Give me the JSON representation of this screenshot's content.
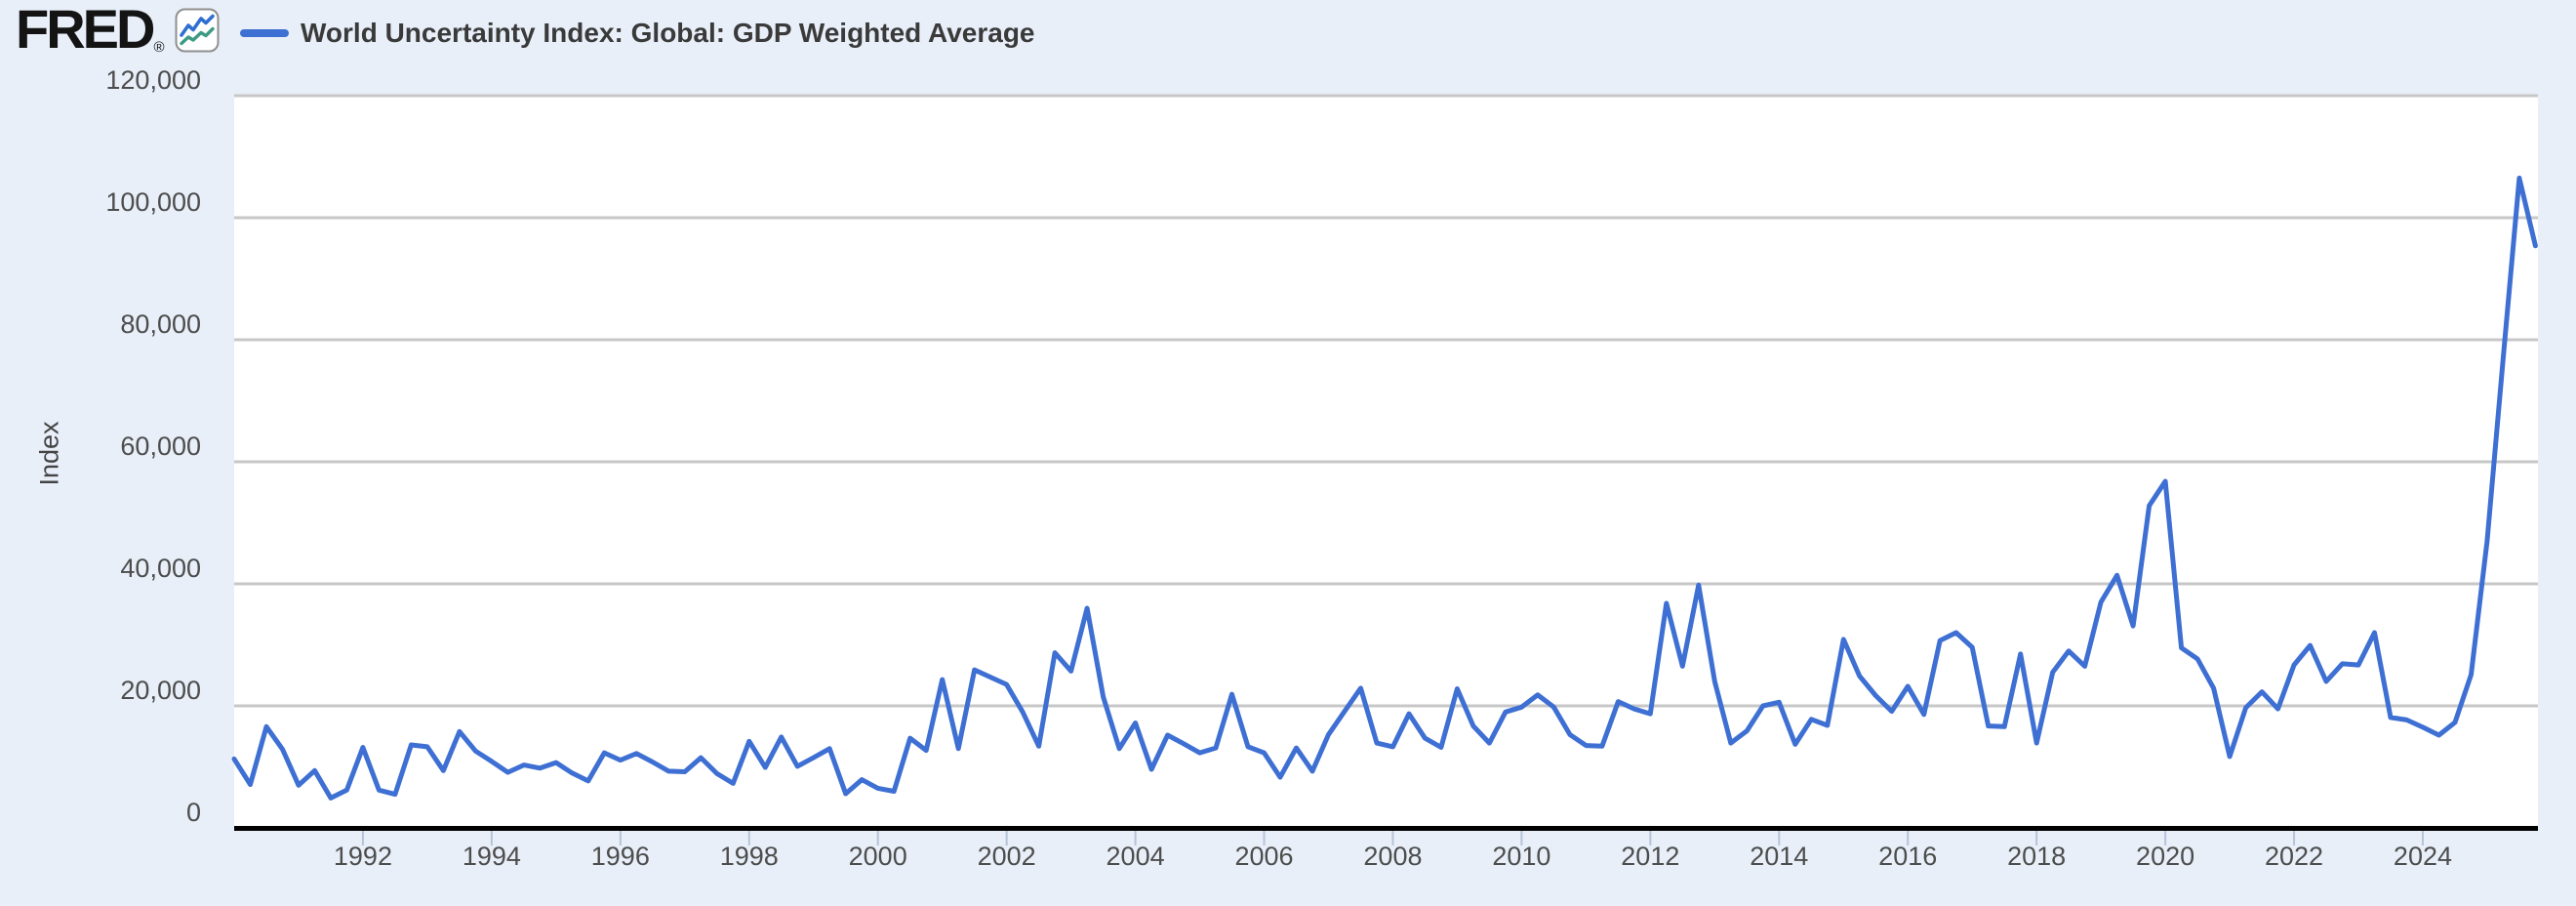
{
  "header": {
    "logo_text": "FRED",
    "logo_registered": "®",
    "logo_badge_icon": "line-chart-icon"
  },
  "legend": {
    "series_label": "World Uncertainty Index: Global: GDP Weighted Average",
    "swatch_color": "#3e6fd3"
  },
  "y_axis": {
    "title": "Index",
    "tick_labels": [
      "0",
      "20,000",
      "40,000",
      "60,000",
      "80,000",
      "100,000",
      "120,000"
    ],
    "tick_values": [
      0,
      20000,
      40000,
      60000,
      80000,
      100000,
      120000
    ],
    "min": 0,
    "max": 120000
  },
  "x_axis": {
    "tick_years": [
      1992,
      1994,
      1996,
      1998,
      2000,
      2002,
      2004,
      2006,
      2008,
      2010,
      2012,
      2014,
      2016,
      2018,
      2020,
      2022,
      2024
    ]
  },
  "chart_data": {
    "type": "line",
    "title": "World Uncertainty Index: Global: GDP Weighted Average",
    "ylabel": "Index",
    "xlabel": "",
    "frequency": "quarterly",
    "x_start": "1990-Q1",
    "x_end": "2025-Q4",
    "ylim": [
      0,
      120000
    ],
    "grid": "horizontal-only",
    "legend_position": "top-left",
    "line_color": "#3e6fd3",
    "values": [
      11300,
      7100,
      16600,
      12900,
      7000,
      9400,
      4900,
      6200,
      13200,
      6200,
      5500,
      13600,
      13300,
      9400,
      15800,
      12600,
      10900,
      9100,
      10300,
      9800,
      10700,
      9000,
      7700,
      12300,
      11100,
      12200,
      10800,
      9300,
      9200,
      11500,
      8900,
      7300,
      14200,
      9900,
      14900,
      10100,
      11500,
      13000,
      5600,
      7900,
      6500,
      6000,
      14700,
      12700,
      24300,
      13000,
      25900,
      24700,
      23500,
      19000,
      13400,
      28700,
      25700,
      36000,
      21500,
      13000,
      17200,
      9600,
      15200,
      13800,
      12300,
      13100,
      21900,
      13300,
      12300,
      8300,
      13100,
      9300,
      15300,
      19100,
      22900,
      13900,
      13300,
      18700,
      14700,
      13200,
      22800,
      16700,
      13900,
      19000,
      19800,
      21800,
      19800,
      15300,
      13500,
      13400,
      20700,
      19500,
      18700,
      36800,
      26500,
      39800,
      24000,
      13900,
      15900,
      20000,
      20600,
      13700,
      17800,
      16800,
      30900,
      24900,
      21700,
      19100,
      23200,
      18600,
      30700,
      32000,
      29600,
      16700,
      16600,
      28500,
      13900,
      25500,
      29000,
      26500,
      37000,
      41400,
      33100,
      52800,
      56800,
      29500,
      27700,
      22900,
      11700,
      19700,
      22300,
      19500,
      26700,
      29900,
      24000,
      26900,
      26700,
      32000,
      18100,
      17700,
      16500,
      15200,
      17300,
      25100,
      47000,
      77000,
      106500,
      95400
    ]
  },
  "colors": {
    "page_background": "#e8eff9",
    "plot_background": "#ffffff",
    "gridline": "#c7c7c7",
    "axis_line": "#000000",
    "tick_mark": "#b7c3d9",
    "axis_text": "#4d4d4d",
    "legend_text": "#3a3a3a",
    "logo_black": "#141414",
    "badge_blue": "#2f6fd0",
    "badge_teal": "#3d9b85"
  }
}
